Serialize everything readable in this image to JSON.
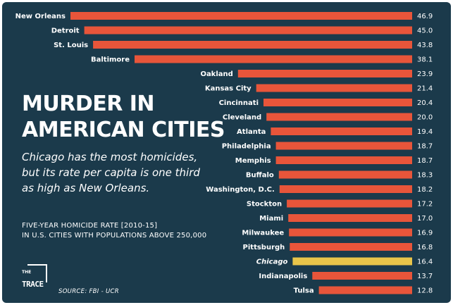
{
  "text": {
    "title_line1": "MURDER IN",
    "title_line2": "AMERICAN CITIES",
    "subtitle": "Chicago has the most homicides, but its rate per capita is one third as high as New Orleans.",
    "note_line1": "FIVE-YEAR HOMICIDE RATE [2010-15]",
    "note_line2": "IN U.S. CITIES WITH POPULATIONS ABOVE 250,000",
    "logo_the": "THE",
    "logo_trace": "TRACE",
    "source": "SOURCE: FBI - UCR"
  },
  "colors": {
    "background": "#1b3a4b",
    "bar": "#e8553a",
    "highlight": "#e9c54a",
    "text": "#ffffff"
  },
  "chart_data": {
    "type": "bar",
    "orientation": "horizontal",
    "xlim": [
      0,
      46.9
    ],
    "highlight": "Chicago",
    "categories": [
      "New Orleans",
      "Detroit",
      "St. Louis",
      "Baltimore",
      "Oakland",
      "Kansas City",
      "Cincinnati",
      "Cleveland",
      "Atlanta",
      "Philadelphia",
      "Memphis",
      "Buffalo",
      "Washington, D.C.",
      "Stockton",
      "Miami",
      "Milwaukee",
      "Pittsburgh",
      "Chicago",
      "Indianapolis",
      "Tulsa"
    ],
    "values": [
      46.9,
      45.0,
      43.8,
      38.1,
      23.9,
      21.4,
      20.4,
      20.0,
      19.4,
      18.7,
      18.7,
      18.3,
      18.2,
      17.2,
      17.0,
      16.9,
      16.8,
      16.4,
      13.7,
      12.8
    ],
    "value_labels": [
      "46.9",
      "45.0",
      "43.8",
      "38.1",
      "23.9",
      "21.4",
      "20.4",
      "20.0",
      "19.4",
      "18.7",
      "18.7",
      "18.3",
      "18.2",
      "17.2",
      "17.0",
      "16.9",
      "16.8",
      "16.4",
      "13.7",
      "12.8"
    ]
  }
}
